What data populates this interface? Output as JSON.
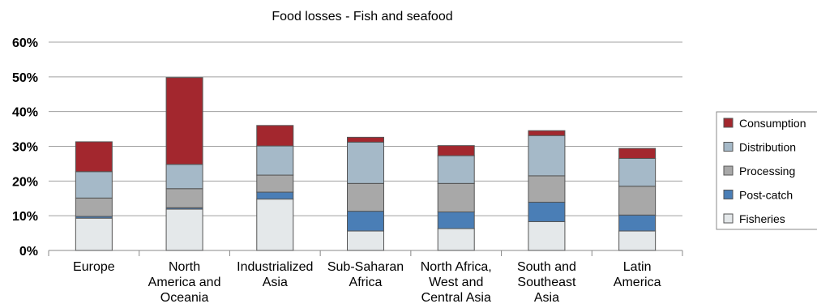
{
  "chart_data": {
    "type": "bar",
    "stacked": true,
    "title": "Food losses - Fish and seafood",
    "xlabel": "",
    "ylabel": "",
    "ylim": [
      0,
      60
    ],
    "yticks": [
      "0%",
      "10%",
      "20%",
      "30%",
      "40%",
      "50%",
      "60%"
    ],
    "grid": true,
    "legend_position": "right",
    "categories": [
      [
        "Europe"
      ],
      [
        "North",
        "America and",
        "Oceania"
      ],
      [
        "Industrialized",
        "Asia"
      ],
      [
        "Sub-Saharan",
        "Africa"
      ],
      [
        "North Africa,",
        "West and",
        "Central Asia"
      ],
      [
        "South and",
        "Southeast",
        "Asia"
      ],
      [
        "Latin",
        "America"
      ]
    ],
    "series": [
      {
        "name": "Fisheries",
        "color": "#e4e8ea",
        "values": [
          9.3,
          11.9,
          14.8,
          5.6,
          6.3,
          8.3,
          5.6
        ]
      },
      {
        "name": "Post-catch",
        "color": "#4a7eb6",
        "values": [
          0.5,
          0.4,
          2.0,
          5.7,
          4.8,
          5.6,
          4.6
        ]
      },
      {
        "name": "Processing",
        "color": "#a8a8a8",
        "values": [
          5.3,
          5.5,
          4.9,
          8.0,
          8.2,
          7.6,
          8.3
        ]
      },
      {
        "name": "Distribution",
        "color": "#a5b9c8",
        "values": [
          7.6,
          7.0,
          8.4,
          11.9,
          8.0,
          11.6,
          8.0
        ]
      },
      {
        "name": "Consumption",
        "color": "#a3272e",
        "values": [
          8.6,
          25.0,
          5.9,
          1.4,
          2.9,
          1.4,
          2.9
        ]
      }
    ],
    "legend_order": [
      "Consumption",
      "Distribution",
      "Processing",
      "Post-catch",
      "Fisheries"
    ]
  },
  "colors": {
    "bar_outline": "#555555",
    "grid": "#a0a0a0",
    "axis": "#888888"
  }
}
